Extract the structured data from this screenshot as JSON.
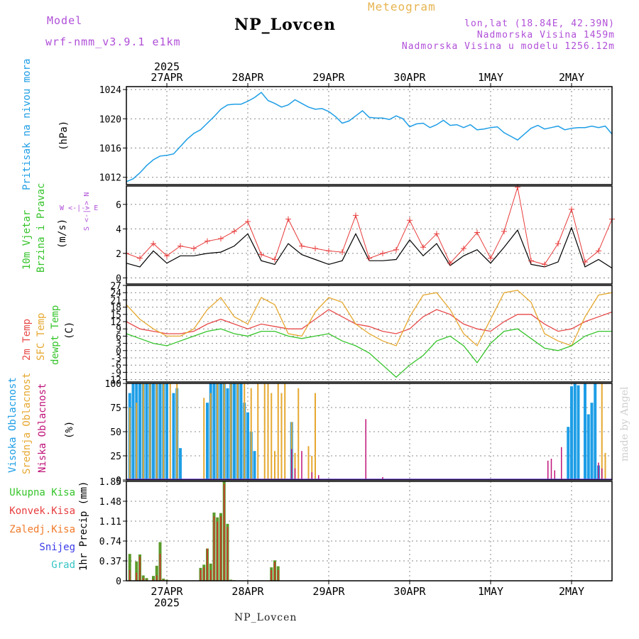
{
  "header": {
    "model_label": "Model",
    "model_name": "wrf-nmm_v3.9.1 e1km",
    "station": "NP_Lovcen",
    "chart_kind": "Meteogram",
    "lonlat": "lon,lat (18.84E, 42.39N)",
    "altitude": "Nadmorska Visina 1459m",
    "model_altitude": "Nadmorska Visina u modelu 1256.12m"
  },
  "footer": {
    "station": "NP_Lovcen",
    "credit": "made by Angel"
  },
  "colors": {
    "pressure": "#1e9ee6",
    "wind_speed": "#000000",
    "gust": "#e83c3c",
    "temp2m": "#e84a4a",
    "sfc_temp": "#e6a830",
    "dewpoint": "#35c42a",
    "high_cloud": "#1e9ee6",
    "mid_cloud": "#e6a830",
    "low_cloud": "#c0147a",
    "total_precip": "#5a9a2a",
    "conv_precip": "#d83030"
  },
  "chart_data": [
    {
      "type": "line",
      "panel": "pressure",
      "ylabel_lines": [
        "Pritisak na nivou mora",
        "(hPa)"
      ],
      "yticks": [
        1012,
        1016,
        1020,
        1024
      ],
      "ylim": [
        1011,
        1024.4
      ],
      "x_hours": [
        0,
        2,
        4,
        6,
        8,
        10,
        12,
        14,
        16,
        18,
        20,
        22,
        24,
        26,
        28,
        30,
        32,
        34,
        36,
        38,
        40,
        42,
        44,
        46,
        48,
        50,
        52,
        54,
        56,
        58,
        60,
        62,
        64,
        66,
        68,
        70,
        72,
        74,
        76,
        78,
        80,
        82,
        84,
        86,
        88,
        90,
        92,
        94,
        96,
        98,
        100,
        102,
        104,
        106,
        108,
        110,
        112,
        114,
        116,
        118,
        120,
        122,
        124,
        126,
        128,
        130,
        132,
        134,
        136,
        138,
        140,
        142,
        144
      ],
      "values": [
        1011.4,
        1011.8,
        1012.6,
        1013.6,
        1014.4,
        1014.9,
        1015.0,
        1015.2,
        1016.2,
        1017.2,
        1018.0,
        1018.5,
        1019.4,
        1020.3,
        1021.3,
        1021.9,
        1022.0,
        1022.0,
        1022.4,
        1022.9,
        1023.6,
        1022.5,
        1022.1,
        1021.6,
        1021.9,
        1022.6,
        1022.1,
        1021.6,
        1021.3,
        1021.4,
        1021.0,
        1020.3,
        1019.4,
        1019.7,
        1020.4,
        1021.1,
        1020.2,
        1020.1,
        1020.1,
        1019.9,
        1020.4,
        1020.0,
        1018.9,
        1019.3,
        1019.4,
        1018.8,
        1019.2,
        1019.8,
        1019.1,
        1019.2,
        1018.8,
        1019.2,
        1018.5,
        1018.6,
        1018.8,
        1018.9,
        1018.1,
        1017.6,
        1017.1,
        1017.9,
        1018.7,
        1019.1,
        1018.6,
        1018.8,
        1019.0,
        1018.5,
        1018.7,
        1018.8,
        1018.8,
        1019.0,
        1018.8,
        1019.0,
        1017.9
      ]
    },
    {
      "type": "line",
      "panel": "wind",
      "ylabel_lines": [
        "10m Vjetar",
        "Brzina i Pravac",
        "(m/s)"
      ],
      "direction_key": [
        "N",
        "<-|->",
        "S"
      ],
      "direction_key_ew": [
        "W",
        "<-|->",
        "E"
      ],
      "yticks": [
        0,
        2,
        4,
        6
      ],
      "ylim": [
        -0.5,
        7.5
      ],
      "x_hours": [
        0,
        4,
        8,
        12,
        16,
        20,
        24,
        28,
        32,
        36,
        40,
        44,
        48,
        52,
        56,
        60,
        64,
        68,
        72,
        76,
        80,
        84,
        88,
        92,
        96,
        100,
        104,
        108,
        112,
        116,
        120,
        124,
        128,
        132,
        136,
        140,
        144
      ],
      "series": [
        {
          "name": "speed",
          "values": [
            1.2,
            0.9,
            2.2,
            1.2,
            1.8,
            1.8,
            2.0,
            2.1,
            2.6,
            3.6,
            1.4,
            1.1,
            2.8,
            1.9,
            1.5,
            1.1,
            1.4,
            3.6,
            1.4,
            1.4,
            1.5,
            3.1,
            1.8,
            2.8,
            1.0,
            1.8,
            2.3,
            1.2,
            2.5,
            3.9,
            1.1,
            0.9,
            1.3,
            4.1,
            0.9,
            1.5,
            0.8
          ]
        },
        {
          "name": "gust",
          "values": [
            2.0,
            1.6,
            2.8,
            1.8,
            2.6,
            2.4,
            3.0,
            3.2,
            3.8,
            4.6,
            1.9,
            1.5,
            4.8,
            2.6,
            2.4,
            2.2,
            2.1,
            5.1,
            1.6,
            2.0,
            2.3,
            4.7,
            2.5,
            3.6,
            1.2,
            2.4,
            3.7,
            1.6,
            3.8,
            7.4,
            1.4,
            1.1,
            2.8,
            5.6,
            1.3,
            2.2,
            4.8
          ]
        }
      ]
    },
    {
      "type": "line",
      "panel": "temperature",
      "ylabel_lines": [
        "2m Temp",
        "SFC Temp",
        "dewpt Temp",
        "(C)"
      ],
      "yticks": [
        -12,
        -9,
        -6,
        -3,
        0,
        3,
        6,
        9,
        12,
        15,
        18,
        21,
        24,
        27
      ],
      "ylim": [
        -13,
        27
      ],
      "x_hours": [
        0,
        4,
        8,
        12,
        16,
        20,
        24,
        28,
        32,
        36,
        40,
        44,
        48,
        52,
        56,
        60,
        64,
        68,
        72,
        76,
        80,
        84,
        88,
        92,
        96,
        100,
        104,
        108,
        112,
        116,
        120,
        124,
        128,
        132,
        136,
        140,
        144
      ],
      "series": [
        {
          "name": "2m",
          "values": [
            12,
            9,
            8,
            7,
            7,
            8,
            11,
            13,
            11,
            9,
            11,
            10,
            9,
            9,
            13,
            17,
            14,
            11,
            10,
            8,
            7,
            9,
            14,
            17,
            15,
            11,
            9,
            8,
            12,
            15,
            15,
            11,
            8,
            9,
            12,
            14,
            16
          ]
        },
        {
          "name": "sfc",
          "values": [
            19,
            13,
            9,
            6,
            6,
            9,
            17,
            22,
            14,
            11,
            22,
            19,
            7,
            6,
            16,
            22,
            20,
            11,
            7,
            4,
            2,
            14,
            23,
            24,
            17,
            7,
            2,
            13,
            24,
            25,
            20,
            7,
            4,
            2,
            14,
            23,
            24
          ]
        },
        {
          "name": "dew",
          "values": [
            7,
            5,
            3,
            2,
            4,
            6,
            8,
            9,
            7,
            6,
            8,
            8,
            6,
            5,
            6,
            7,
            4,
            2,
            -1,
            -6,
            -11,
            -6,
            -2,
            4,
            6,
            2,
            -5,
            3,
            8,
            9,
            5,
            1,
            0,
            2,
            6,
            8,
            8
          ]
        }
      ]
    },
    {
      "type": "bar",
      "panel": "cloud",
      "ylabel_lines": [
        "Visoka Oblacnost",
        "Srednja Oblacnost",
        "Niska Oblacnost",
        "(%)"
      ],
      "yticks": [
        0,
        25,
        50,
        75,
        100
      ],
      "ylim": [
        0,
        100
      ],
      "series": [
        {
          "name": "Visoka Oblacnost",
          "x_hours": [
            1,
            2,
            3,
            4,
            5,
            6,
            7,
            8,
            9,
            10,
            11,
            12,
            14,
            15,
            16,
            24,
            25,
            26,
            27,
            28,
            29,
            30,
            31,
            32,
            33,
            34,
            35,
            36,
            37,
            38,
            49,
            131,
            132,
            133,
            134,
            136,
            137,
            138,
            139,
            140
          ],
          "values": [
            90,
            100,
            100,
            100,
            100,
            100,
            100,
            100,
            100,
            100,
            100,
            100,
            90,
            95,
            33,
            80,
            100,
            100,
            100,
            100,
            100,
            95,
            100,
            100,
            100,
            100,
            80,
            70,
            50,
            30,
            60,
            55,
            97,
            100,
            98,
            100,
            68,
            80,
            100,
            15
          ]
        },
        {
          "name": "Srednja Oblacnost",
          "x_hours": [
            1,
            3,
            5,
            7,
            9,
            11,
            13,
            15,
            23,
            25,
            27,
            29,
            31,
            33,
            35,
            37,
            39,
            41,
            42,
            43,
            44,
            45,
            46,
            47,
            49,
            50,
            51,
            54,
            55,
            56,
            141,
            142
          ],
          "values": [
            75,
            80,
            100,
            100,
            100,
            100,
            100,
            100,
            85,
            90,
            100,
            100,
            100,
            100,
            100,
            95,
            100,
            100,
            100,
            90,
            30,
            100,
            90,
            100,
            60,
            28,
            95,
            35,
            25,
            90,
            100,
            28
          ]
        },
        {
          "name": "Niska Oblacnost",
          "x_hours": [
            49,
            50,
            52,
            55,
            57,
            71,
            76,
            125,
            126,
            127,
            129,
            140,
            141
          ],
          "values": [
            32,
            12,
            30,
            8,
            5,
            63,
            3,
            20,
            22,
            10,
            34,
            18,
            12
          ]
        }
      ]
    },
    {
      "type": "bar",
      "panel": "precip",
      "ylabel_lines": [
        "1hr Precip (mm)"
      ],
      "legend": [
        "Ukupna Kisa",
        "Konvek.Kisa",
        "Zaledj.Kisa",
        "Snijeg",
        "Grad"
      ],
      "legend_colors": [
        "#35c42a",
        "#e83c3c",
        "#f07a2a",
        "#3a3ae8",
        "#35c4c4"
      ],
      "yticks": [
        0,
        0.37,
        0.74,
        1.11,
        1.48,
        1.85
      ],
      "ylim": [
        0,
        1.85
      ],
      "x_hours": [
        1,
        3,
        4,
        5,
        6,
        8,
        9,
        10,
        11,
        12,
        22,
        23,
        24,
        25,
        26,
        27,
        28,
        29,
        30,
        31,
        32,
        43,
        44,
        45
      ],
      "series": [
        {
          "name": "Ukupna Kisa",
          "values": [
            0.5,
            0.36,
            0.49,
            0.1,
            0.05,
            0.09,
            0.28,
            0.72,
            0.04,
            0.02,
            0.24,
            0.3,
            0.6,
            0.32,
            1.27,
            1.18,
            1.26,
            1.85,
            1.06,
            0.02,
            0.01,
            0.25,
            0.38,
            0.27
          ]
        },
        {
          "name": "Konvek.Kisa",
          "values": [
            0.2,
            0.15,
            0.45,
            0.05,
            0.02,
            0.03,
            0.1,
            0.5,
            0.02,
            0.01,
            0.2,
            0.25,
            0.6,
            0.2,
            1.2,
            1.1,
            1.2,
            1.8,
            1.0,
            0.01,
            0.01,
            0.2,
            0.35,
            0.2
          ]
        }
      ]
    }
  ],
  "x_axis": {
    "year": "2025",
    "day_labels": [
      "27APR",
      "28APR",
      "29APR",
      "30APR",
      "1MAY",
      "2MAY"
    ]
  }
}
